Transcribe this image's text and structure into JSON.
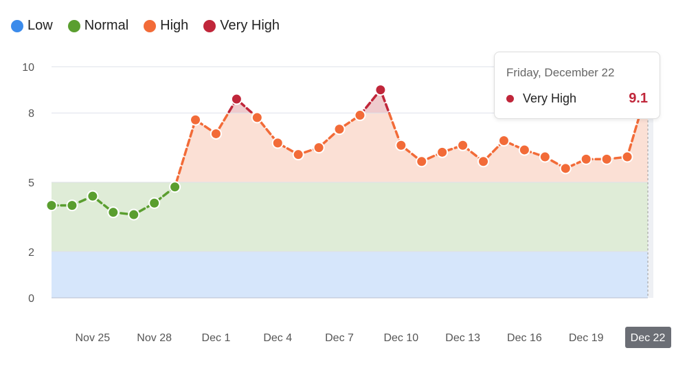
{
  "colors": {
    "low": "#3b8beb",
    "normal": "#5a9e2f",
    "high": "#f26b38",
    "very_high": "#c0263a"
  },
  "legend": [
    {
      "label": "Low",
      "color": "#3b8beb"
    },
    {
      "label": "Normal",
      "color": "#5a9e2f"
    },
    {
      "label": "High",
      "color": "#f26b38"
    },
    {
      "label": "Very High",
      "color": "#c0263a"
    }
  ],
  "tooltip": {
    "date": "Friday, December 22",
    "series": "Very High",
    "value": "9.1"
  },
  "chart_data": {
    "type": "line",
    "title": "",
    "xlabel": "",
    "ylabel": "",
    "ylim": [
      0,
      10
    ],
    "yticks": [
      "0",
      "2",
      "5",
      "8",
      "10"
    ],
    "thresholds": {
      "low": [
        0,
        2
      ],
      "normal": [
        2,
        5
      ],
      "high": [
        5,
        8
      ],
      "very_high": [
        8,
        10
      ]
    },
    "x": [
      "Nov 23",
      "Nov 24",
      "Nov 25",
      "Nov 26",
      "Nov 27",
      "Nov 28",
      "Nov 29",
      "Nov 30",
      "Dec 1",
      "Dec 2",
      "Dec 3",
      "Dec 4",
      "Dec 5",
      "Dec 6",
      "Dec 7",
      "Dec 8",
      "Dec 9",
      "Dec 10",
      "Dec 11",
      "Dec 12",
      "Dec 13",
      "Dec 14",
      "Dec 15",
      "Dec 16",
      "Dec 17",
      "Dec 18",
      "Dec 19",
      "Dec 20",
      "Dec 21",
      "Dec 22"
    ],
    "xtick_labels": [
      "Nov 25",
      "Nov 28",
      "Dec 1",
      "Dec 4",
      "Dec 7",
      "Dec 10",
      "Dec 13",
      "Dec 16",
      "Dec 19",
      "Dec 22"
    ],
    "values": [
      4.0,
      4.0,
      4.4,
      3.7,
      3.6,
      4.1,
      4.8,
      7.7,
      7.1,
      8.6,
      7.8,
      6.7,
      6.2,
      6.5,
      7.3,
      7.9,
      9.0,
      6.6,
      5.9,
      6.3,
      6.6,
      5.9,
      6.8,
      6.4,
      6.1,
      5.6,
      6.0,
      6.0,
      6.1,
      9.1
    ],
    "highlighted": "Dec 22",
    "legend_position": "top-left",
    "grid": true
  }
}
